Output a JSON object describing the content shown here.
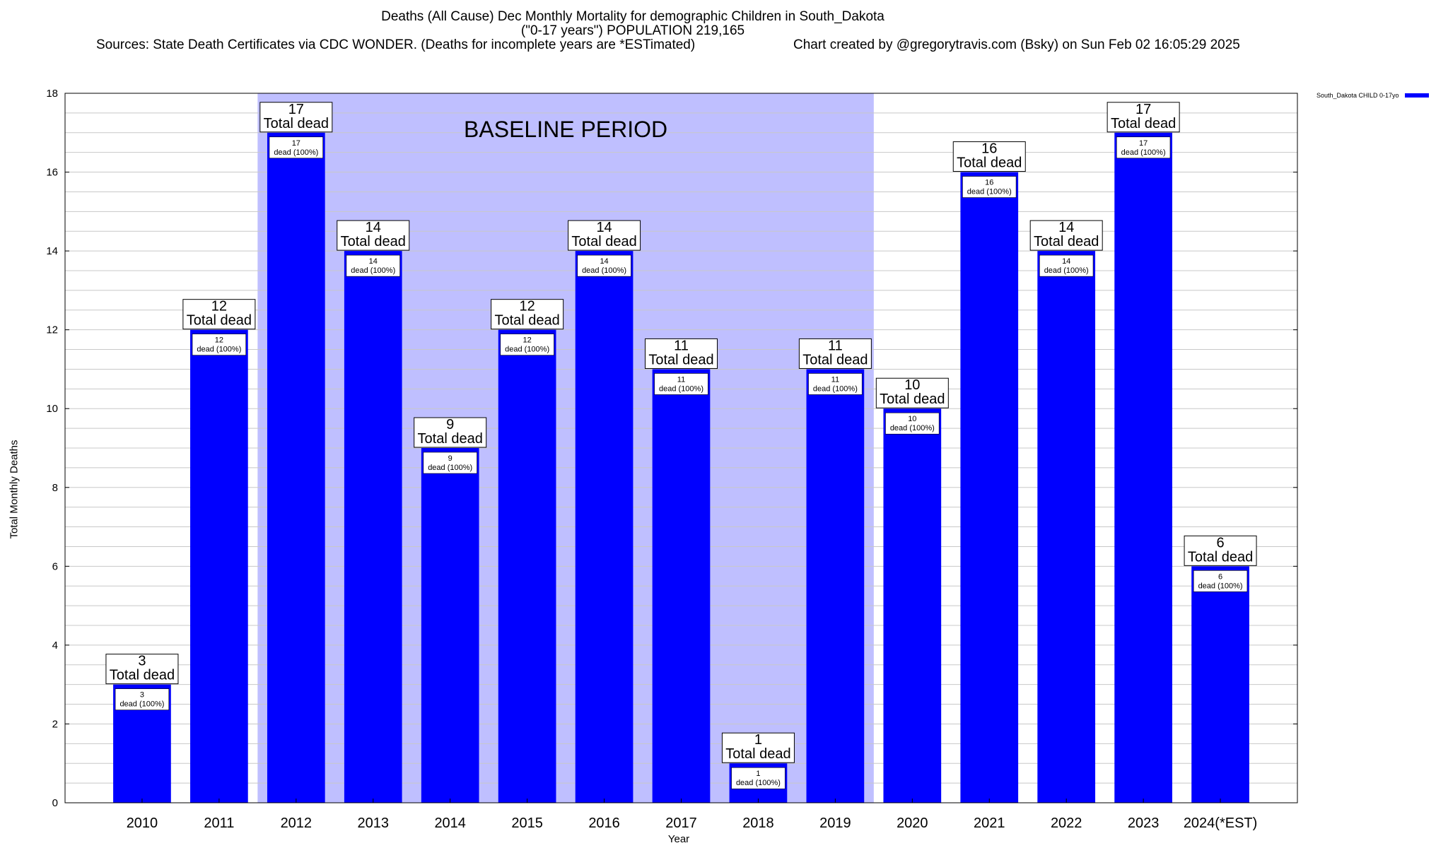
{
  "title": {
    "line1": "Deaths (All Cause) Dec Monthly Mortality for demographic Children in South_Dakota",
    "line2": "(\"0-17 years\") POPULATION 219,165",
    "line3": "Sources: State Death Certificates via CDC WONDER. (Deaths for incomplete years are *ESTimated)",
    "line4": "Chart created by @gregorytravis.com (Bsky) on Sun Feb 02 16:05:29 2025"
  },
  "colors": {
    "bar": "#0000ff",
    "baseline_shade": "#bfbfff",
    "grid": "#c8c8c8"
  },
  "chart_data": {
    "type": "bar",
    "xlabel": "Year",
    "ylabel": "Total Monthly Deaths",
    "ylim": [
      0,
      18
    ],
    "y_ticks": [
      0,
      2,
      4,
      6,
      8,
      10,
      12,
      14,
      16,
      18
    ],
    "grid": true,
    "legend_position": "top-right",
    "categories": [
      "2010",
      "2011",
      "2012",
      "2013",
      "2014",
      "2015",
      "2016",
      "2017",
      "2018",
      "2019",
      "2020",
      "2021",
      "2022",
      "2023",
      "2024(*EST)"
    ],
    "series": [
      {
        "name": "South_Dakota CHILD 0-17yo",
        "values": [
          3,
          12,
          17,
          14,
          9,
          12,
          14,
          11,
          1,
          11,
          10,
          16,
          14,
          17,
          6
        ]
      }
    ],
    "total_label_text": "Total dead",
    "inner_label_text": "dead (100%)",
    "baseline": {
      "label": "BASELINE PERIOD",
      "from": "2012",
      "to": "2019"
    }
  }
}
